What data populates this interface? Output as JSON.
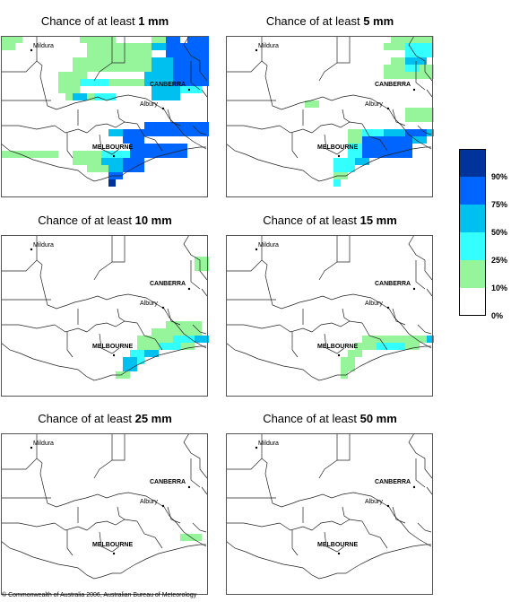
{
  "panels": [
    {
      "prefix": "Chance of at least ",
      "amount": "1 mm",
      "cells_key": "p1"
    },
    {
      "prefix": "Chance of at least ",
      "amount": "5 mm",
      "cells_key": "p5"
    },
    {
      "prefix": "Chance of at least ",
      "amount": "10 mm",
      "cells_key": "p10"
    },
    {
      "prefix": "Chance of at least ",
      "amount": "15 mm",
      "cells_key": "p15"
    },
    {
      "prefix": "Chance of at least ",
      "amount": "25 mm",
      "cells_key": "p25"
    },
    {
      "prefix": "Chance of at least ",
      "amount": "50 mm",
      "cells_key": "p50"
    }
  ],
  "cities": {
    "mildura": "Mildura",
    "canberra": "CANBERRA",
    "albury": "Albury",
    "melbourne": "MELBOURNE"
  },
  "legend": {
    "items": [
      {
        "label": "90%",
        "color": "#00349b"
      },
      {
        "label": "75%",
        "color": "#0064ff"
      },
      {
        "label": "50%",
        "color": "#00c0f0"
      },
      {
        "label": "25%",
        "color": "#33ffff"
      },
      {
        "label": "10%",
        "color": "#96f59b"
      },
      {
        "label": "0%",
        "color": "#ffffff"
      }
    ]
  },
  "colors": {
    "c10": "#96f59b",
    "c25": "#33ffff",
    "c50": "#00c0f0",
    "c75": "#0064ff",
    "c90": "#00349b"
  },
  "footer": "© Commonwealth of Australia 2006, Australian Bureau of Meteorology"
}
